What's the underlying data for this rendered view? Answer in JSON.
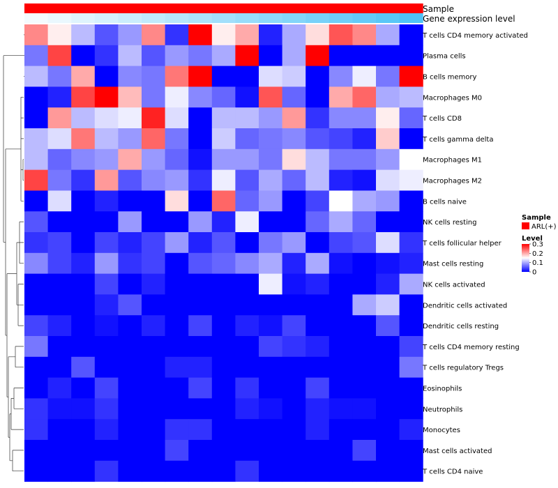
{
  "chart_data": {
    "type": "heatmap",
    "annotation_tracks": [
      {
        "label": "Sample",
        "level": "ARL(+)",
        "color": "#ff0000"
      },
      {
        "label": "Gene expression level",
        "values": [
          0.0,
          0.03,
          0.06,
          0.09,
          0.12,
          0.15,
          0.18,
          0.21,
          0.24,
          0.27,
          0.3,
          0.33,
          0.36,
          0.39,
          0.42,
          0.45,
          0.48
        ],
        "color_low": "#f4fbfe",
        "color_high": "#4fc3f7"
      }
    ],
    "rows": [
      "T cells CD4 memory activated",
      "Plasma cells",
      "B cells memory",
      "Macrophages M0",
      "T cells CD8",
      "T cells gamma delta",
      "Macrophages M1",
      "Macrophages M2",
      "B cells naive",
      "NK cells resting",
      "T cells follicular helper",
      "Mast cells resting",
      "NK cells activated",
      "Dendritic cells activated",
      "Dendritic cells resting",
      "T cells CD4 memory resting",
      "T cells regulatory  Tregs",
      "Eosinophils",
      "Neutrophils",
      "Monocytes",
      "Mast cells activated",
      "T cells CD4 naive"
    ],
    "n_cols": 17,
    "values": [
      [
        0.22,
        0.16,
        0.11,
        0.05,
        0.09,
        0.22,
        0.03,
        0.3,
        0.16,
        0.2,
        0.02,
        0.1,
        0.17,
        0.25,
        0.22,
        0.1,
        0.0
      ],
      [
        0.07,
        0.26,
        0.0,
        0.03,
        0.11,
        0.05,
        0.09,
        0.07,
        0.1,
        0.3,
        0.0,
        0.1,
        0.3,
        0.0,
        0.0,
        0.0,
        0.0
      ],
      [
        0.11,
        0.07,
        0.2,
        0.0,
        0.08,
        0.07,
        0.23,
        0.3,
        0.0,
        0.0,
        0.13,
        0.12,
        0.0,
        0.08,
        0.14,
        0.07,
        0.3
      ],
      [
        0.0,
        0.02,
        0.26,
        0.3,
        0.19,
        0.07,
        0.14,
        0.08,
        0.06,
        0.01,
        0.25,
        0.06,
        0.0,
        0.2,
        0.24,
        0.1,
        0.11
      ],
      [
        0.0,
        0.21,
        0.11,
        0.13,
        0.14,
        0.28,
        0.13,
        0.0,
        0.11,
        0.11,
        0.09,
        0.21,
        0.03,
        0.08,
        0.08,
        0.16,
        0.06
      ],
      [
        0.11,
        0.13,
        0.23,
        0.11,
        0.09,
        0.24,
        0.07,
        0.0,
        0.12,
        0.06,
        0.07,
        0.08,
        0.05,
        0.04,
        0.02,
        0.18,
        0.0
      ],
      [
        0.11,
        0.06,
        0.08,
        0.09,
        0.2,
        0.09,
        0.06,
        0.01,
        0.09,
        0.09,
        0.07,
        0.17,
        0.11,
        0.07,
        0.07,
        0.09,
        0.15
      ],
      [
        0.26,
        0.07,
        0.03,
        0.21,
        0.05,
        0.08,
        0.09,
        0.03,
        0.14,
        0.05,
        0.1,
        0.06,
        0.11,
        0.02,
        0.01,
        0.13,
        0.14
      ],
      [
        0.0,
        0.13,
        0.0,
        0.02,
        0.0,
        0.0,
        0.17,
        0.0,
        0.24,
        0.06,
        0.09,
        0.0,
        0.04,
        0.15,
        0.1,
        0.09,
        0.0
      ],
      [
        0.05,
        0.0,
        0.0,
        0.0,
        0.09,
        0.0,
        0.0,
        0.09,
        0.02,
        0.14,
        0.0,
        0.0,
        0.06,
        0.1,
        0.06,
        0.0,
        0.0
      ],
      [
        0.03,
        0.04,
        0.0,
        0.04,
        0.02,
        0.04,
        0.09,
        0.02,
        0.05,
        0.0,
        0.07,
        0.09,
        0.0,
        0.04,
        0.05,
        0.13,
        0.03
      ],
      [
        0.08,
        0.04,
        0.02,
        0.09,
        0.03,
        0.04,
        0.0,
        0.05,
        0.06,
        0.08,
        0.1,
        0.02,
        0.1,
        0.01,
        0.0,
        0.01,
        0.02
      ],
      [
        0.0,
        0.0,
        0.0,
        0.04,
        0.0,
        0.02,
        0.0,
        0.0,
        0.0,
        0.0,
        0.14,
        0.01,
        0.02,
        0.0,
        0.0,
        0.02,
        0.1
      ],
      [
        0.0,
        0.0,
        0.0,
        0.02,
        0.05,
        0.0,
        0.0,
        0.0,
        0.0,
        0.0,
        0.0,
        0.0,
        0.0,
        0.0,
        0.1,
        0.12,
        0.0
      ],
      [
        0.04,
        0.02,
        0.0,
        0.01,
        0.0,
        0.02,
        0.0,
        0.04,
        0.0,
        0.02,
        0.01,
        0.04,
        0.0,
        0.0,
        0.0,
        0.05,
        0.0
      ],
      [
        0.07,
        0.0,
        0.0,
        0.0,
        0.0,
        0.0,
        0.0,
        0.0,
        0.0,
        0.0,
        0.04,
        0.03,
        0.02,
        0.0,
        0.0,
        0.0,
        0.04
      ],
      [
        0.0,
        0.0,
        0.05,
        0.0,
        0.0,
        0.0,
        0.02,
        0.02,
        0.0,
        0.0,
        0.0,
        0.0,
        0.0,
        0.0,
        0.0,
        0.0,
        0.07
      ],
      [
        0.0,
        0.02,
        0.0,
        0.04,
        0.0,
        0.0,
        0.0,
        0.04,
        0.0,
        0.03,
        0.0,
        0.0,
        0.04,
        0.0,
        0.0,
        0.0,
        0.0
      ],
      [
        0.03,
        0.01,
        0.01,
        0.03,
        0.0,
        0.0,
        0.0,
        0.0,
        0.0,
        0.02,
        0.01,
        0.0,
        0.02,
        0.01,
        0.01,
        0.0,
        0.0
      ],
      [
        0.03,
        0.0,
        0.0,
        0.02,
        0.0,
        0.0,
        0.03,
        0.03,
        0.0,
        0.0,
        0.0,
        0.0,
        0.02,
        0.0,
        0.0,
        0.0,
        0.02
      ],
      [
        0.0,
        0.0,
        0.0,
        0.0,
        0.0,
        0.0,
        0.04,
        0.0,
        0.0,
        0.0,
        0.0,
        0.0,
        0.0,
        0.0,
        0.04,
        0.0,
        0.0
      ],
      [
        0.0,
        0.0,
        0.0,
        0.03,
        0.0,
        0.0,
        0.0,
        0.0,
        0.0,
        0.03,
        0.0,
        0.0,
        0.0,
        0.0,
        0.0,
        0.0,
        0.0
      ]
    ],
    "color_scale": {
      "low": "#0000ff",
      "mid": "#ffffff",
      "high": "#ff0000",
      "min": 0,
      "mid_value": 0.15,
      "max": 0.3
    },
    "legend": {
      "sample_title": "Sample",
      "sample_entry": "ARL(+)",
      "level_title": "Level",
      "level_ticks": [
        "0.3",
        "0.2",
        "0.1",
        "0"
      ],
      "level_tick_values": [
        0.3,
        0.2,
        0.1,
        0
      ],
      "position": "right"
    },
    "dendrogram": "rows"
  }
}
